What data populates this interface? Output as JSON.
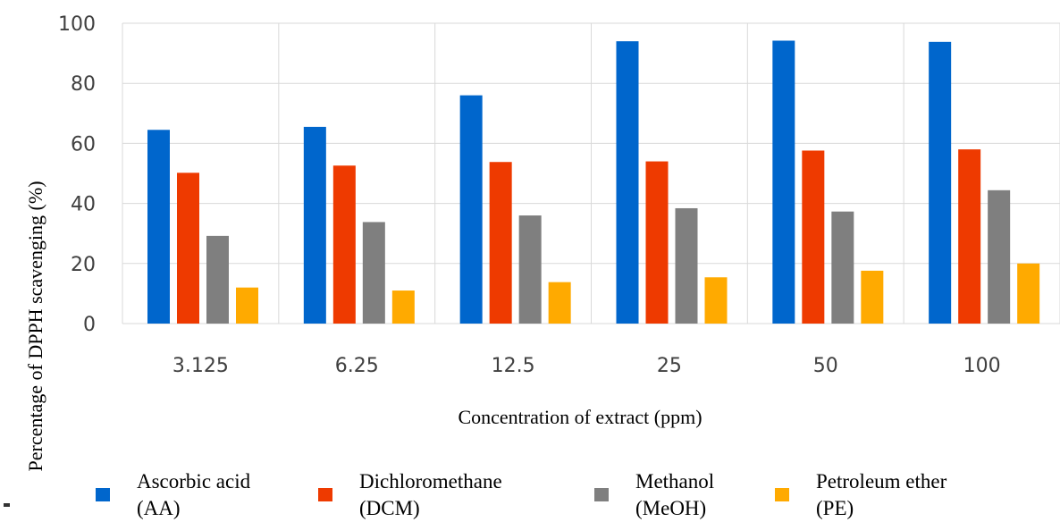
{
  "chart_data": {
    "type": "bar",
    "xlabel": "Concentration of extract (ppm)",
    "ylabel": "Percentage of DPPH scavenging (%)",
    "ylim": [
      0,
      100
    ],
    "yticks": [
      "0",
      "20",
      "40",
      "60",
      "80",
      "100"
    ],
    "categories": [
      "3.125",
      "6.25",
      "12.5",
      "25",
      "50",
      "100"
    ],
    "grid": true,
    "legend_position": "bottom",
    "series": [
      {
        "name_lines": [
          "Ascorbic acid",
          "(AA)"
        ],
        "color": "#0066CC",
        "values": [
          64.5,
          65.5,
          76,
          94,
          94.2,
          93.8
        ]
      },
      {
        "name_lines": [
          "Dichloromethane",
          "(DCM)"
        ],
        "color": "#EE3A00",
        "values": [
          50.2,
          52.6,
          53.8,
          54,
          57.6,
          58
        ]
      },
      {
        "name_lines": [
          "Methanol",
          "(MeOH)"
        ],
        "color": "#7F7F7F",
        "values": [
          29.2,
          33.8,
          36,
          38.4,
          37.3,
          44.4
        ]
      },
      {
        "name_lines": [
          "Petroleum ether",
          "(PE)"
        ],
        "color": "#FFAA00",
        "values": [
          12,
          11,
          13.8,
          15.4,
          17.6,
          20
        ]
      }
    ]
  }
}
